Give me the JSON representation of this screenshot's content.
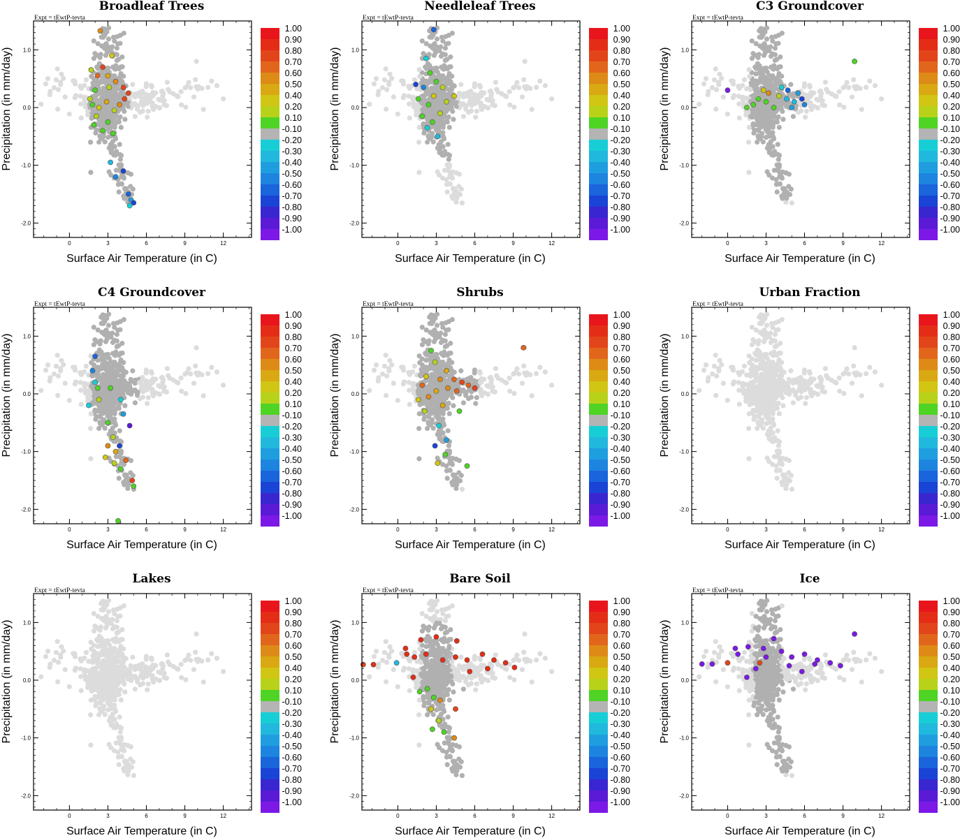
{
  "figure": {
    "experiment_label": "Expt = tEwtP-tevta",
    "xlabel": "Surface Air Temperature (in C)",
    "ylabel": "Precipitation (in mm/day)",
    "colorbar_labels": [
      "1.00",
      "0.90",
      "0.80",
      "0.70",
      "0.60",
      "0.50",
      "0.40",
      "0.20",
      "0.10",
      "-0.10",
      "-0.20",
      "-0.30",
      "-0.40",
      "-0.50",
      "-0.60",
      "-0.70",
      "-0.80",
      "-0.90",
      "-1.00"
    ],
    "colorbar_colors": [
      "#e8161c",
      "#e42d16",
      "#e3451a",
      "#e1661c",
      "#dd8a16",
      "#d9a812",
      "#d1c613",
      "#b8d21a",
      "#4fd325",
      "#b4b4b4",
      "#18ced6",
      "#21b8de",
      "#1f9edf",
      "#1d84df",
      "#1a64dc",
      "#1a44d6",
      "#3a26d0",
      "#5a1ad6",
      "#7c19e6"
    ],
    "colors": {
      "background_points": "#dcdcdc",
      "land_points": "#b0b0b0",
      "edge": "#555555"
    }
  },
  "chart_data": [
    {
      "type": "scatter",
      "title": "Broadleaf Trees",
      "xlabel": "Surface Air Temperature (in C)",
      "ylabel": "Precipitation (in mm/day)",
      "xlim": [
        -2.8,
        14.2
      ],
      "ylim": [
        -2.25,
        1.5
      ],
      "xticks": [
        "0",
        "3",
        "6",
        "9",
        "12"
      ],
      "yticks": [
        "1.0",
        "0.0",
        "-1.0",
        "-2.0"
      ],
      "colorbar": "correlation",
      "pattern": "broadleaf",
      "highlights": [
        [
          2.4,
          1.33,
          0.6
        ],
        [
          3.3,
          0.9,
          0.4
        ],
        [
          2.6,
          0.7,
          0.8
        ],
        [
          2.2,
          0.55,
          0.7
        ],
        [
          1.7,
          0.65,
          0.3
        ],
        [
          3.0,
          0.55,
          0.5
        ],
        [
          3.6,
          0.45,
          0.6
        ],
        [
          4.2,
          0.35,
          0.8
        ],
        [
          4.6,
          0.25,
          0.8
        ],
        [
          4.3,
          0.15,
          0.8
        ],
        [
          3.1,
          0.35,
          0.3
        ],
        [
          2.0,
          0.3,
          0.1
        ],
        [
          1.6,
          0.15,
          0.3
        ],
        [
          1.8,
          0.05,
          0.1
        ],
        [
          2.3,
          0.0,
          0.4
        ],
        [
          2.9,
          0.1,
          0.5
        ],
        [
          3.5,
          -0.05,
          0.3
        ],
        [
          3.9,
          0.05,
          0.6
        ],
        [
          2.1,
          -0.15,
          0.3
        ],
        [
          1.9,
          -0.3,
          0.1
        ],
        [
          3.0,
          -0.25,
          0.2
        ],
        [
          2.6,
          -0.4,
          0.1
        ],
        [
          3.4,
          -0.45,
          0.2
        ],
        [
          3.2,
          -0.95,
          -0.3
        ],
        [
          4.2,
          -1.1,
          -0.7
        ],
        [
          3.6,
          -1.2,
          -0.5
        ],
        [
          4.6,
          -1.5,
          -0.6
        ],
        [
          4.8,
          -1.6,
          -0.4
        ],
        [
          5.0,
          -1.65,
          -0.7
        ],
        [
          4.7,
          -1.7,
          -0.2
        ]
      ]
    },
    {
      "type": "scatter",
      "title": "Needleleaf Trees",
      "xlabel": "Surface Air Temperature (in C)",
      "ylabel": "Precipitation (in mm/day)",
      "xlim": [
        -2.8,
        14.2
      ],
      "ylim": [
        -2.25,
        1.5
      ],
      "xticks": [
        "0",
        "3",
        "6",
        "9",
        "12"
      ],
      "yticks": [
        "1.0",
        "0.0",
        "-1.0",
        "-2.0"
      ],
      "colorbar": "correlation",
      "pattern": "needleleaf",
      "highlights": [
        [
          2.8,
          1.35,
          -0.6
        ],
        [
          2.2,
          0.85,
          -0.2
        ],
        [
          2.5,
          0.6,
          0.1
        ],
        [
          3.0,
          0.45,
          0.2
        ],
        [
          2.0,
          0.35,
          -0.5
        ],
        [
          3.5,
          0.35,
          0.3
        ],
        [
          2.8,
          0.2,
          0.4
        ],
        [
          1.6,
          0.15,
          0.1
        ],
        [
          2.4,
          0.05,
          0.2
        ],
        [
          3.8,
          0.1,
          0.3
        ],
        [
          4.4,
          0.2,
          0.4
        ],
        [
          1.9,
          -0.15,
          0.2
        ],
        [
          2.7,
          -0.25,
          0.1
        ],
        [
          3.3,
          -0.1,
          0.3
        ],
        [
          1.4,
          0.4,
          -0.7
        ],
        [
          2.3,
          -0.35,
          -0.2
        ],
        [
          3.1,
          -0.5,
          -0.3
        ]
      ]
    },
    {
      "type": "scatter",
      "title": "C3 Groundcover",
      "xlabel": "Surface Air Temperature (in C)",
      "ylabel": "Precipitation (in mm/day)",
      "xlim": [
        -2.8,
        14.2
      ],
      "ylim": [
        -2.25,
        1.5
      ],
      "xticks": [
        "0",
        "3",
        "6",
        "9",
        "12"
      ],
      "yticks": [
        "1.0",
        "0.0",
        "-1.0",
        "-2.0"
      ],
      "colorbar": "correlation",
      "pattern": "c3",
      "highlights": [
        [
          0.0,
          0.3,
          -0.95
        ],
        [
          9.9,
          0.8,
          0.2
        ],
        [
          3.2,
          0.25,
          0.6
        ],
        [
          4.6,
          0.15,
          -0.3
        ],
        [
          5.2,
          0.1,
          -0.35
        ],
        [
          5.8,
          0.15,
          -0.7
        ],
        [
          6.0,
          0.05,
          -0.5
        ],
        [
          5.5,
          0.25,
          -0.4
        ],
        [
          4.2,
          0.35,
          -0.2
        ],
        [
          3.0,
          0.1,
          0.1
        ],
        [
          2.4,
          0.15,
          0.2
        ],
        [
          2.0,
          0.05,
          0.1
        ],
        [
          3.6,
          0.0,
          0.2
        ],
        [
          4.0,
          0.2,
          0.3
        ],
        [
          5.0,
          0.0,
          -0.4
        ],
        [
          4.7,
          0.3,
          -0.6
        ],
        [
          2.8,
          0.3,
          0.4
        ],
        [
          1.5,
          0.0,
          0.1
        ]
      ]
    },
    {
      "type": "scatter",
      "title": "C4 Groundcover",
      "xlabel": "Surface Air Temperature (in C)",
      "ylabel": "Precipitation (in mm/day)",
      "xlim": [
        -2.8,
        14.2
      ],
      "ylim": [
        -2.25,
        1.5
      ],
      "xticks": [
        "0",
        "3",
        "6",
        "9",
        "12"
      ],
      "yticks": [
        "1.0",
        "0.0",
        "-1.0",
        "-2.0"
      ],
      "colorbar": "correlation",
      "pattern": "c4",
      "highlights": [
        [
          2.0,
          0.65,
          -0.6
        ],
        [
          1.8,
          0.4,
          -0.5
        ],
        [
          2.0,
          0.2,
          -0.2
        ],
        [
          2.2,
          0.1,
          0.1
        ],
        [
          3.2,
          0.1,
          0.2
        ],
        [
          1.5,
          -0.2,
          -0.2
        ],
        [
          2.3,
          -0.1,
          0.3
        ],
        [
          4.0,
          -0.1,
          -0.2
        ],
        [
          4.2,
          -0.35,
          -0.4
        ],
        [
          4.7,
          -0.55,
          -0.9
        ],
        [
          3.0,
          -0.5,
          0.2
        ],
        [
          3.4,
          -0.75,
          0.3
        ],
        [
          3.0,
          -0.9,
          0.6
        ],
        [
          3.6,
          -1.0,
          0.5
        ],
        [
          2.8,
          -1.1,
          0.4
        ],
        [
          3.5,
          -1.2,
          0.3
        ],
        [
          4.4,
          -1.15,
          0.7
        ],
        [
          4.0,
          -1.3,
          0.2
        ],
        [
          4.9,
          -1.5,
          0.8
        ],
        [
          5.0,
          -1.6,
          0.1
        ],
        [
          3.8,
          -2.2,
          0.2
        ],
        [
          3.9,
          -0.9,
          -0.7
        ]
      ]
    },
    {
      "type": "scatter",
      "title": "Shrubs",
      "xlabel": "Surface Air Temperature (in C)",
      "ylabel": "Precipitation (in mm/day)",
      "xlim": [
        -2.8,
        14.2
      ],
      "ylim": [
        -2.25,
        1.5
      ],
      "xticks": [
        "0",
        "3",
        "6",
        "9",
        "12"
      ],
      "yticks": [
        "1.0",
        "0.0",
        "-1.0",
        "-2.0"
      ],
      "colorbar": "correlation",
      "pattern": "shrubs",
      "highlights": [
        [
          9.8,
          0.8,
          0.7
        ],
        [
          2.6,
          0.75,
          0.1
        ],
        [
          2.9,
          0.55,
          0.3
        ],
        [
          3.8,
          0.4,
          0.5
        ],
        [
          2.2,
          0.3,
          0.4
        ],
        [
          3.3,
          0.25,
          0.6
        ],
        [
          4.4,
          0.25,
          0.7
        ],
        [
          5.0,
          0.2,
          0.8
        ],
        [
          5.5,
          0.15,
          0.7
        ],
        [
          6.0,
          0.1,
          0.8
        ],
        [
          4.6,
          0.05,
          0.7
        ],
        [
          3.9,
          0.1,
          0.6
        ],
        [
          3.0,
          0.05,
          0.5
        ],
        [
          2.4,
          -0.05,
          0.6
        ],
        [
          1.9,
          0.15,
          0.7
        ],
        [
          1.6,
          -0.1,
          0.4
        ],
        [
          2.1,
          -0.3,
          0.3
        ],
        [
          3.5,
          -0.2,
          0.5
        ],
        [
          4.8,
          -0.3,
          0.2
        ],
        [
          3.2,
          -0.55,
          -0.2
        ],
        [
          3.8,
          -0.8,
          -0.4
        ],
        [
          2.9,
          -0.9,
          -0.7
        ],
        [
          5.4,
          -1.25,
          0.1
        ],
        [
          3.7,
          -1.05,
          0.2
        ],
        [
          3.1,
          -1.2,
          0.4
        ]
      ]
    },
    {
      "type": "scatter",
      "title": "Urban Fraction",
      "xlabel": "Surface Air Temperature (in C)",
      "ylabel": "Precipitation (in mm/day)",
      "xlim": [
        -2.8,
        14.2
      ],
      "ylim": [
        -2.25,
        1.5
      ],
      "xticks": [
        "0",
        "3",
        "6",
        "9",
        "12"
      ],
      "yticks": [
        "1.0",
        "0.0",
        "-1.0",
        "-2.0"
      ],
      "colorbar": "correlation",
      "pattern": "none",
      "highlights": []
    },
    {
      "type": "scatter",
      "title": "Lakes",
      "xlabel": "Surface Air Temperature (in C)",
      "ylabel": "Precipitation (in mm/day)",
      "xlim": [
        -2.8,
        14.2
      ],
      "ylim": [
        -2.25,
        1.5
      ],
      "xticks": [
        "0",
        "3",
        "6",
        "9",
        "12"
      ],
      "yticks": [
        "1.0",
        "0.0",
        "-1.0",
        "-2.0"
      ],
      "colorbar": "correlation",
      "pattern": "none",
      "highlights": []
    },
    {
      "type": "scatter",
      "title": "Bare Soil",
      "xlabel": "Surface Air Temperature (in C)",
      "ylabel": "Precipitation (in mm/day)",
      "xlim": [
        -2.8,
        14.2
      ],
      "ylim": [
        -2.25,
        1.5
      ],
      "xticks": [
        "0",
        "3",
        "6",
        "9",
        "12"
      ],
      "yticks": [
        "1.0",
        "0.0",
        "-1.0",
        "-2.0"
      ],
      "colorbar": "correlation",
      "pattern": "baresoil",
      "highlights": [
        [
          -2.7,
          0.27,
          0.8
        ],
        [
          -1.9,
          0.27,
          0.9
        ],
        [
          -0.1,
          0.3,
          -0.3
        ],
        [
          0.6,
          0.55,
          0.9
        ],
        [
          0.7,
          0.45,
          0.9
        ],
        [
          1.8,
          0.7,
          0.9
        ],
        [
          3.0,
          0.75,
          0.9
        ],
        [
          4.6,
          0.68,
          0.9
        ],
        [
          1.3,
          0.4,
          0.9
        ],
        [
          2.2,
          0.45,
          0.9
        ],
        [
          3.5,
          0.35,
          0.9
        ],
        [
          4.5,
          0.4,
          0.9
        ],
        [
          5.4,
          0.35,
          0.9
        ],
        [
          6.6,
          0.45,
          0.9
        ],
        [
          7.5,
          0.35,
          0.9
        ],
        [
          8.4,
          0.3,
          0.9
        ],
        [
          9.1,
          0.22,
          0.9
        ],
        [
          7.0,
          0.2,
          0.9
        ],
        [
          1.2,
          0.05,
          0.9
        ],
        [
          5.6,
          0.15,
          0.9
        ],
        [
          2.3,
          -0.15,
          0.2
        ],
        [
          2.8,
          -0.3,
          0.1
        ],
        [
          1.7,
          -0.2,
          0.1
        ],
        [
          3.3,
          -0.35,
          0.6
        ],
        [
          2.6,
          -0.5,
          0.4
        ],
        [
          3.2,
          -0.7,
          0.3
        ],
        [
          2.7,
          -0.85,
          0.1
        ],
        [
          3.6,
          -0.9,
          0.2
        ],
        [
          4.5,
          -0.5,
          0.8
        ],
        [
          4.4,
          -1.0,
          0.6
        ]
      ]
    },
    {
      "type": "scatter",
      "title": "Ice",
      "xlabel": "Surface Air Temperature (in C)",
      "ylabel": "Precipitation (in mm/day)",
      "xlim": [
        -2.8,
        14.2
      ],
      "ylim": [
        -2.25,
        1.5
      ],
      "xticks": [
        "0",
        "3",
        "6",
        "9",
        "12"
      ],
      "yticks": [
        "1.0",
        "0.0",
        "-1.0",
        "-2.0"
      ],
      "colorbar": "correlation",
      "pattern": "ice",
      "highlights": [
        [
          -2.0,
          0.28,
          -0.95
        ],
        [
          -1.2,
          0.28,
          -0.95
        ],
        [
          0.0,
          0.3,
          0.8
        ],
        [
          0.6,
          0.55,
          -0.95
        ],
        [
          0.8,
          0.45,
          -0.95
        ],
        [
          1.6,
          0.58,
          -0.95
        ],
        [
          2.5,
          0.3,
          0.8
        ],
        [
          2.8,
          0.55,
          -0.95
        ],
        [
          3.6,
          0.72,
          -0.95
        ],
        [
          3.0,
          0.4,
          -0.95
        ],
        [
          4.2,
          0.5,
          -0.95
        ],
        [
          5.0,
          0.4,
          -0.95
        ],
        [
          6.0,
          0.45,
          -0.95
        ],
        [
          7.0,
          0.35,
          -0.95
        ],
        [
          8.0,
          0.3,
          -0.95
        ],
        [
          8.8,
          0.25,
          -0.95
        ],
        [
          9.9,
          0.8,
          -0.95
        ],
        [
          1.5,
          0.05,
          -0.95
        ],
        [
          5.8,
          0.15,
          -0.95
        ],
        [
          2.2,
          0.2,
          -0.95
        ],
        [
          4.8,
          0.25,
          -0.95
        ],
        [
          6.8,
          0.28,
          -0.95
        ]
      ]
    }
  ]
}
